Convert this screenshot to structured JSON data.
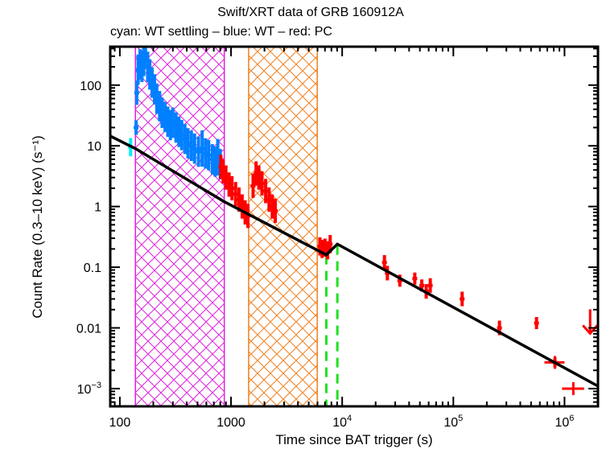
{
  "chart_data": {
    "type": "scatter",
    "title": "Swift/XRT data of GRB 160912A",
    "subtitle": "cyan: WT settling – blue: WT – red: PC",
    "xlabel": "Time since BAT trigger (s)",
    "ylabel": "Count Rate (0.3–10 keV) (s⁻¹)",
    "xscale": "log",
    "yscale": "log",
    "xlim": [
      82,
      2000000
    ],
    "ylim": [
      0.00051,
      430
    ],
    "grid": false,
    "x_ticks": [
      {
        "value": 100,
        "label": "100"
      },
      {
        "value": 1000,
        "label": "1000"
      },
      {
        "value": 10000,
        "label": "10",
        "sup": "4"
      },
      {
        "value": 100000,
        "label": "10",
        "sup": "5"
      },
      {
        "value": 1000000,
        "label": "10",
        "sup": "6"
      }
    ],
    "y_ticks": [
      {
        "value": 100,
        "label": "100"
      },
      {
        "value": 10,
        "label": "10"
      },
      {
        "value": 1,
        "label": "1"
      },
      {
        "value": 0.1,
        "label": "0.1"
      },
      {
        "value": 0.01,
        "label": "0.01"
      },
      {
        "value": 0.001,
        "label": "10",
        "sup": "−3"
      }
    ],
    "shaded_regions": [
      {
        "name": "flare-1",
        "x_start": 138,
        "x_end": 870,
        "color": "#e020e0"
      },
      {
        "name": "flare-2",
        "x_start": 1440,
        "x_end": 5970,
        "color": "#f08020"
      }
    ],
    "break_lines": [
      {
        "x": 7200,
        "color": "#20e020"
      },
      {
        "x": 9050,
        "color": "#20e020"
      }
    ],
    "fit_line": {
      "color": "#000000",
      "points": [
        [
          82,
          14.5
        ],
        [
          138,
          9.0
        ],
        [
          870,
          1.2
        ],
        [
          7200,
          0.16
        ],
        [
          9050,
          0.24
        ],
        [
          2000000,
          0.0011
        ]
      ]
    },
    "series": [
      {
        "name": "WT settling",
        "color": "#00f0f0",
        "points": [
          [
            125,
            9.5,
            0.15
          ]
        ]
      },
      {
        "name": "WT",
        "color": "#0080ff",
        "points": [
          [
            140,
            20,
            0.12
          ],
          [
            142,
            75,
            0.2
          ],
          [
            146,
            180,
            0.25
          ],
          [
            152,
            220,
            0.25
          ],
          [
            158,
            200,
            0.25
          ],
          [
            164,
            250,
            0.25
          ],
          [
            170,
            330,
            0.2
          ],
          [
            178,
            200,
            0.25
          ],
          [
            186,
            150,
            0.25
          ],
          [
            195,
            110,
            0.25
          ],
          [
            205,
            85,
            0.25
          ],
          [
            215,
            60,
            0.25
          ],
          [
            228,
            45,
            0.25
          ],
          [
            240,
            35,
            0.25
          ],
          [
            255,
            30,
            0.25
          ],
          [
            270,
            25,
            0.25
          ],
          [
            285,
            22,
            0.25
          ],
          [
            300,
            24,
            0.25
          ],
          [
            320,
            20,
            0.25
          ],
          [
            340,
            17,
            0.25
          ],
          [
            360,
            15,
            0.25
          ],
          [
            385,
            13,
            0.25
          ],
          [
            410,
            11,
            0.25
          ],
          [
            440,
            10,
            0.25
          ],
          [
            470,
            9,
            0.25
          ],
          [
            510,
            8,
            0.25
          ],
          [
            550,
            9,
            0.3
          ],
          [
            590,
            7.5,
            0.25
          ],
          [
            630,
            7,
            0.25
          ],
          [
            680,
            6,
            0.25
          ],
          [
            720,
            5.5,
            0.25
          ],
          [
            760,
            6.5,
            0.3
          ],
          [
            800,
            5.0,
            0.25
          ]
        ]
      },
      {
        "name": "PC",
        "color": "#ff0000",
        "points": [
          [
            810,
            4.5,
            0.2
          ],
          [
            850,
            3.8,
            0.2
          ],
          [
            900,
            3.0,
            0.2
          ],
          [
            960,
            2.3,
            0.2
          ],
          [
            1020,
            2.0,
            0.2
          ],
          [
            1100,
            1.6,
            0.2
          ],
          [
            1180,
            1.3,
            0.2
          ],
          [
            1260,
            1.0,
            0.2
          ],
          [
            1340,
            0.8,
            0.2
          ],
          [
            1420,
            0.7,
            0.2
          ],
          [
            1580,
            2.2,
            0.2
          ],
          [
            1680,
            3.5,
            0.2
          ],
          [
            1780,
            3.0,
            0.2
          ],
          [
            1900,
            2.4,
            0.2
          ],
          [
            2050,
            1.8,
            0.2
          ],
          [
            2200,
            1.3,
            0.2
          ],
          [
            2350,
            1.0,
            0.2
          ],
          [
            2500,
            0.85,
            0.2
          ],
          [
            6300,
            0.22,
            0.15
          ],
          [
            6600,
            0.2,
            0.15
          ],
          [
            7000,
            0.21,
            0.15
          ],
          [
            7400,
            0.19,
            0.15
          ],
          [
            7800,
            0.24,
            0.15
          ],
          [
            24000,
            0.12,
            0.12
          ],
          [
            25500,
            0.08,
            0.12
          ],
          [
            33000,
            0.06,
            0.1
          ],
          [
            45000,
            0.065,
            0.1
          ],
          [
            52000,
            0.05,
            0.1
          ],
          [
            57000,
            0.04,
            0.12
          ],
          [
            62000,
            0.05,
            0.12
          ],
          [
            120000,
            0.03,
            0.12
          ],
          [
            260000,
            0.01,
            0.12
          ],
          [
            560000,
            0.012,
            0.1
          ],
          [
            820000,
            0.0027,
            0.08
          ]
        ],
        "x_error_points": [
          [
            820000,
            0.0027,
            660000,
            1000000
          ],
          [
            1200000,
            0.001,
            950000,
            1500000
          ]
        ],
        "upper_limits": [
          [
            1700000,
            0.011
          ]
        ]
      }
    ]
  }
}
